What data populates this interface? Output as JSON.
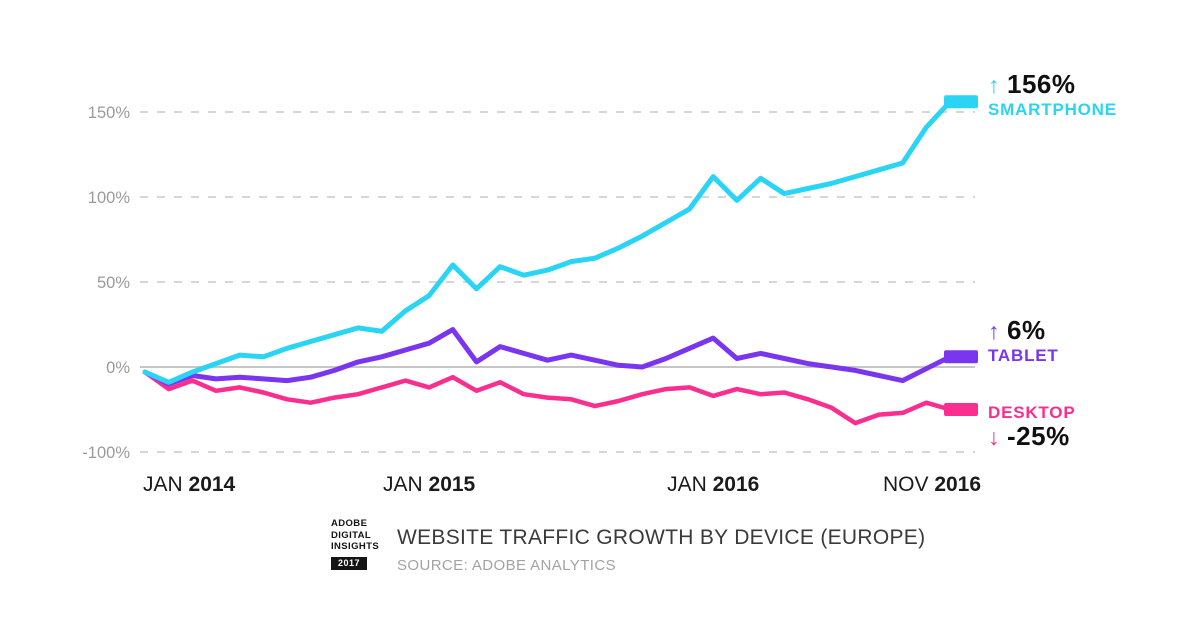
{
  "chart_data": {
    "type": "line",
    "title": "WEBSITE TRAFFIC GROWTH BY DEVICE (EUROPE)",
    "source": "SOURCE: ADOBE ANALYTICS",
    "x_ticks": [
      {
        "index": 0,
        "month": "JAN",
        "year": "2014"
      },
      {
        "index": 12,
        "month": "JAN",
        "year": "2015"
      },
      {
        "index": 24,
        "month": "JAN",
        "year": "2016"
      },
      {
        "index": 34,
        "month": "NOV",
        "year": "2016"
      }
    ],
    "y_axis": {
      "tick_labels": [
        "150%",
        "100%",
        "50%",
        "0%",
        "-100%"
      ],
      "tick_values": [
        150,
        100,
        50,
        0,
        -100
      ],
      "unit": "%"
    },
    "months_span": "JAN 2014 - NOV 2016",
    "series": [
      {
        "name": "SMARTPHONE",
        "color": "#2AD4F4",
        "end_value_label": "156%",
        "end_arrow": "up",
        "values": [
          -3,
          -9,
          -3,
          2,
          7,
          6,
          11,
          15,
          19,
          23,
          21,
          33,
          42,
          60,
          46,
          59,
          54,
          57,
          62,
          64,
          70,
          77,
          85,
          93,
          112,
          98,
          111,
          102,
          105,
          108,
          112,
          116,
          120,
          141,
          156
        ]
      },
      {
        "name": "TABLET",
        "color": "#7A35EE",
        "end_value_label": "6%",
        "end_arrow": "up",
        "values": [
          -3,
          -10,
          -5,
          -7,
          -6,
          -7,
          -8,
          -6,
          -2,
          3,
          6,
          10,
          14,
          22,
          3,
          12,
          8,
          4,
          7,
          4,
          1,
          0,
          5,
          11,
          17,
          5,
          8,
          5,
          2,
          0,
          -2,
          -5,
          -8,
          -1,
          6
        ]
      },
      {
        "name": "DESKTOP",
        "color": "#FA2E8E",
        "end_value_label": "-25%",
        "end_arrow": "down",
        "values": [
          -3,
          -13,
          -8,
          -14,
          -12,
          -15,
          -19,
          -21,
          -18,
          -16,
          -12,
          -8,
          -12,
          -6,
          -14,
          -9,
          -16,
          -18,
          -19,
          -23,
          -20,
          -16,
          -13,
          -12,
          -17,
          -13,
          -16,
          -15,
          -19,
          -24,
          -33,
          -28,
          -27,
          -21,
          -25
        ]
      }
    ]
  },
  "footer": {
    "logo": {
      "line1": "ADOBE",
      "line2": "DIGITAL",
      "line3": "INSIGHTS",
      "year": "2017"
    }
  }
}
